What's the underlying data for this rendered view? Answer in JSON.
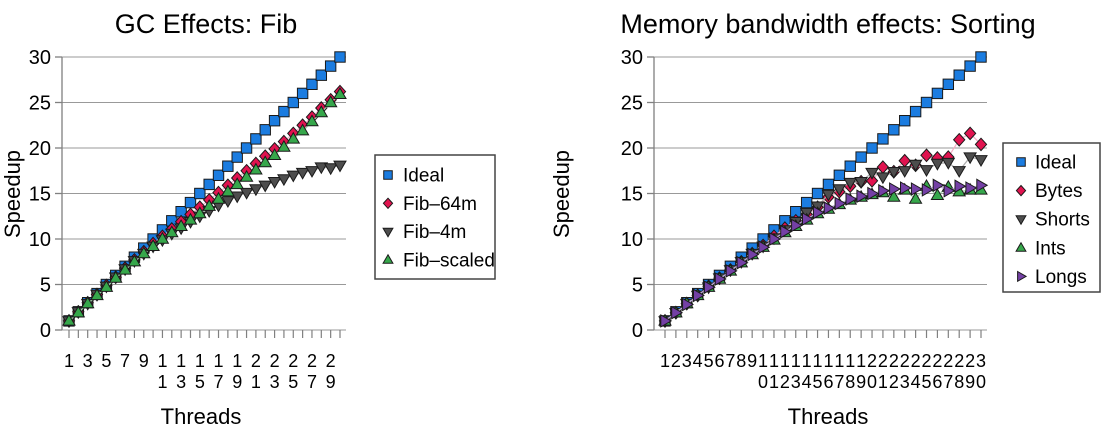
{
  "chart_data": [
    {
      "type": "scatter",
      "title": "GC Effects: Fib",
      "xlabel": "Threads",
      "ylabel": "Speedup",
      "x": [
        1,
        2,
        3,
        4,
        5,
        6,
        7,
        8,
        9,
        10,
        11,
        12,
        13,
        14,
        15,
        16,
        17,
        18,
        19,
        20,
        21,
        22,
        23,
        24,
        25,
        26,
        27,
        28,
        29,
        30
      ],
      "x_tick_label_step": 2,
      "ylim": [
        0,
        30
      ],
      "yticks": [
        0,
        5,
        10,
        15,
        20,
        25,
        30
      ],
      "grid": "horizontal",
      "legend_position": "right",
      "series": [
        {
          "name": "Ideal",
          "marker": "square",
          "color": "#1b7ce0",
          "line_color": "#a9cdf2",
          "values": [
            1,
            2,
            3,
            4,
            5,
            6,
            7,
            8,
            9,
            10,
            11,
            12,
            13,
            14,
            15,
            16,
            17,
            18,
            19,
            20,
            21,
            22,
            23,
            24,
            25,
            26,
            27,
            28,
            29,
            30
          ]
        },
        {
          "name": "Fib–64m",
          "marker": "diamond",
          "color": "#e0134f",
          "line_color": "#f4aec6",
          "values": [
            1,
            2,
            3,
            3.9,
            4.9,
            5.8,
            6.8,
            7.7,
            8.6,
            9.5,
            10.3,
            11.1,
            11.9,
            12.7,
            13.5,
            14.3,
            15.1,
            15.9,
            16.7,
            17.5,
            18.3,
            19.1,
            19.9,
            20.7,
            21.6,
            22.5,
            23.4,
            24.4,
            25.3,
            26.2
          ]
        },
        {
          "name": "Fib–4m",
          "marker": "triangle-down",
          "color": "#4d4d4d",
          "line_color": "#ababab",
          "values": [
            1,
            2,
            2.9,
            3.9,
            4.8,
            5.8,
            6.7,
            7.6,
            8.4,
            9.2,
            9.9,
            10.6,
            11.2,
            11.9,
            12.5,
            13.1,
            13.7,
            14.2,
            14.7,
            15.1,
            15.5,
            15.9,
            16.3,
            16.6,
            17.0,
            17.3,
            17.5,
            17.9,
            17.8,
            18.1
          ]
        },
        {
          "name": "Fib–scaled",
          "marker": "triangle-up",
          "color": "#36a74b",
          "line_color": "#a6d8af",
          "values": [
            1,
            1.9,
            2.9,
            3.8,
            4.7,
            5.7,
            6.6,
            7.5,
            8.4,
            9.2,
            10.0,
            10.7,
            11.4,
            12.1,
            12.8,
            13.6,
            14.4,
            15.2,
            16.0,
            16.8,
            17.6,
            18.4,
            19.2,
            20.1,
            21.0,
            21.9,
            22.9,
            23.9,
            25.0,
            25.9
          ]
        }
      ]
    },
    {
      "type": "scatter",
      "title": "Memory bandwidth effects: Sorting",
      "xlabel": "Threads",
      "ylabel": "Speedup",
      "x": [
        1,
        2,
        3,
        4,
        5,
        6,
        7,
        8,
        9,
        10,
        11,
        12,
        13,
        14,
        15,
        16,
        17,
        18,
        19,
        20,
        21,
        22,
        23,
        24,
        25,
        26,
        27,
        28,
        29,
        30
      ],
      "x_tick_label_step": 1,
      "ylim": [
        0,
        30
      ],
      "yticks": [
        0,
        5,
        10,
        15,
        20,
        25,
        30
      ],
      "grid": "horizontal",
      "legend_position": "right",
      "series": [
        {
          "name": "Ideal",
          "marker": "square",
          "color": "#1b7ce0",
          "line_color": "#a9cdf2",
          "values": [
            1,
            2,
            3,
            4,
            5,
            6,
            7,
            8,
            9,
            10,
            11,
            12,
            13,
            14,
            15,
            16,
            17,
            18,
            19,
            20,
            21,
            22,
            23,
            24,
            25,
            26,
            27,
            28,
            29,
            30
          ]
        },
        {
          "name": "Bytes",
          "marker": "diamond",
          "color": "#e0134f",
          "line_color": "#f4aec6",
          "values": [
            1,
            1.9,
            2.9,
            3.8,
            4.8,
            5.7,
            6.6,
            7.5,
            8.4,
            9.3,
            10.3,
            11.2,
            12.0,
            12.7,
            13.5,
            14.6,
            15.2,
            15.8,
            16.3,
            16.4,
            17.9,
            17.4,
            18.6,
            18.1,
            19.2,
            18.9,
            19.0,
            20.9,
            21.6,
            20.4
          ]
        },
        {
          "name": "Shorts",
          "marker": "triangle-down",
          "color": "#4d4d4d",
          "line_color": "#ababab",
          "values": [
            1,
            1.9,
            2.9,
            3.8,
            4.7,
            5.7,
            6.6,
            7.5,
            8.4,
            9.2,
            10.1,
            11.0,
            11.9,
            12.9,
            13.6,
            14.9,
            15.5,
            16.2,
            16.3,
            17.3,
            16.8,
            17.4,
            17.5,
            18.2,
            17.6,
            18.3,
            18.4,
            17.5,
            19.0,
            18.7
          ]
        },
        {
          "name": "Ints",
          "marker": "triangle-up",
          "color": "#36a74b",
          "line_color": "#a6d8af",
          "values": [
            1,
            1.9,
            2.9,
            3.8,
            4.7,
            5.6,
            6.5,
            7.4,
            8.3,
            9.1,
            9.9,
            10.7,
            11.4,
            12.1,
            12.8,
            13.3,
            13.8,
            14.3,
            14.6,
            14.9,
            15.1,
            14.6,
            15.4,
            14.4,
            15.8,
            14.8,
            15.7,
            15.2,
            15.4,
            15.4
          ]
        },
        {
          "name": "Longs",
          "marker": "triangle-right",
          "color": "#7440a5",
          "line_color": "#bfa4dd",
          "values": [
            1,
            1.9,
            2.8,
            3.8,
            4.7,
            5.6,
            6.5,
            7.4,
            8.3,
            9.1,
            10.0,
            10.8,
            11.5,
            12.2,
            12.9,
            13.4,
            13.9,
            14.4,
            14.7,
            15.0,
            15.3,
            15.5,
            15.6,
            15.5,
            15.4,
            15.9,
            15.3,
            15.8,
            15.6,
            15.9
          ]
        }
      ]
    }
  ],
  "style": {
    "grid_color": "#999999",
    "axis_color": "#808080",
    "marker_stroke": "#1a1a1a",
    "legend_border": "#444444",
    "legend_background": "#ffffff"
  }
}
